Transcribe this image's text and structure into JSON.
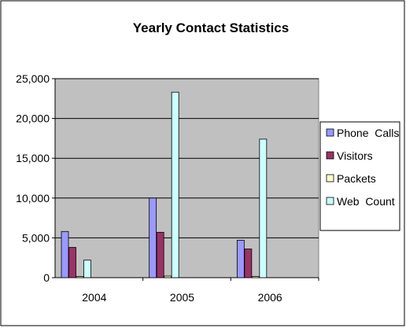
{
  "chart_data": {
    "type": "bar",
    "title": "Yearly Contact Statistics",
    "xlabel": "",
    "ylabel": "",
    "categories": [
      "2004",
      "2005",
      "2006"
    ],
    "ylim": [
      0,
      25000
    ],
    "yticks": [
      0,
      5000,
      10000,
      15000,
      20000,
      25000
    ],
    "ytick_labels": [
      "0",
      "5,000",
      "10,000",
      "15,000",
      "20,000",
      "25,000"
    ],
    "grid": true,
    "legend_position": "right",
    "plot_background": "#c0c0c0",
    "series": [
      {
        "name": "Phone  Calls",
        "color": "#9999ff",
        "values": [
          5800,
          10000,
          4700
        ]
      },
      {
        "name": "Visitors",
        "color": "#993366",
        "values": [
          3800,
          5700,
          3600
        ]
      },
      {
        "name": "Packets",
        "color": "#ffffcc",
        "values": [
          150,
          200,
          150
        ]
      },
      {
        "name": "Web  Count",
        "color": "#ccffff",
        "values": [
          2200,
          23300,
          17400
        ]
      }
    ]
  }
}
